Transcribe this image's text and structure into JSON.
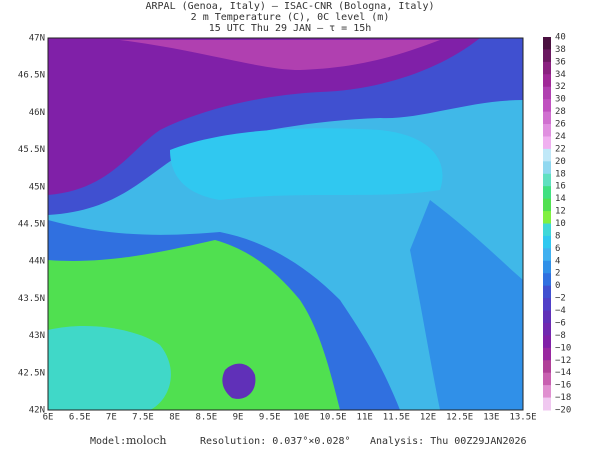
{
  "header": {
    "lines": [
      "ARPAL (Genoa, Italy)  –  ISAC-CNR (Bologna, Italy)",
      "2 m Temperature (C), 0C level (m)",
      "15 UTC Thu 29 JAN  –  τ = 15h"
    ]
  },
  "map": {
    "x_labels": [
      "6E",
      "6.5E",
      "7E",
      "7.5E",
      "8E",
      "8.5E",
      "9E",
      "9.5E",
      "10E",
      "10.5E",
      "11E",
      "11.5E",
      "12E",
      "12.5E",
      "13E",
      "13.5E"
    ],
    "y_labels": [
      "47N",
      "46.5N",
      "46N",
      "45.5N",
      "45N",
      "44.5N",
      "44N",
      "43.5N",
      "43N",
      "42.5N",
      "42N"
    ]
  },
  "colorbar": {
    "labels": [
      "40",
      "38",
      "36",
      "34",
      "32",
      "30",
      "28",
      "26",
      "24",
      "22",
      "20",
      "18",
      "16",
      "14",
      "12",
      "10",
      "8",
      "6",
      "4",
      "2",
      "0",
      "−2",
      "−4",
      "−6",
      "−8",
      "−10",
      "−12",
      "−14",
      "−16",
      "−18",
      "−20"
    ],
    "colors": [
      "#4a1040",
      "#6a1860",
      "#8a2080",
      "#a02898",
      "#b040b0",
      "#c050c0",
      "#d070d0",
      "#e090e0",
      "#f0b0f0",
      "#c0e8f8",
      "#90d8f0",
      "#60e0c0",
      "#40e080",
      "#50e050",
      "#80f040",
      "#40d8d8",
      "#30c8f0",
      "#40b0f0",
      "#3090e8",
      "#3070e0",
      "#4050d0",
      "#5040c8",
      "#6030b8",
      "#7028b0",
      "#8020a8",
      "#9828a0",
      "#b04098",
      "#c860b0",
      "#e090d0",
      "#f0c8f0"
    ]
  },
  "footer": {
    "model_label": "Model:",
    "model": "moloch",
    "resolution": "Resolution: 0.037°×0.028°",
    "analysis": "Analysis: Thu 00Z29JAN2026"
  }
}
